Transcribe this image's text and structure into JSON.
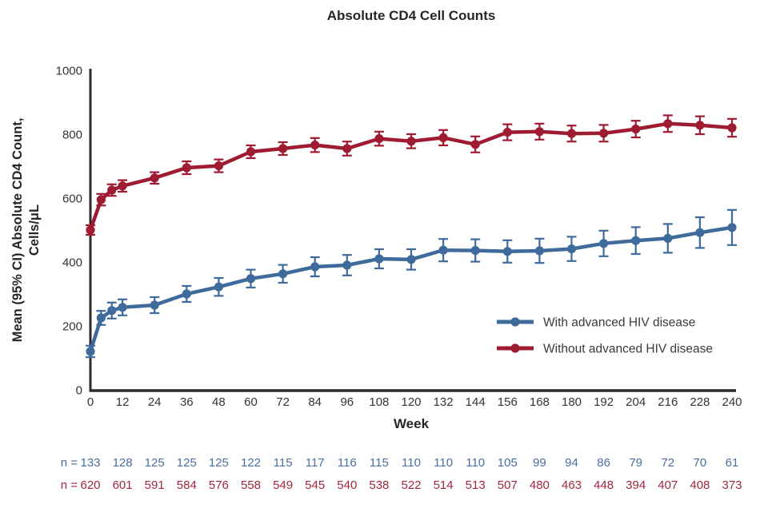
{
  "title": "Absolute CD4 Cell Counts",
  "colors": {
    "with_advanced_blue": "#3E6A9C",
    "without_advanced_red": "#9E1B32",
    "n_row_blue": "#4A6E9E",
    "n_row_red": "#A0283C",
    "axis": "#2B2B2B",
    "tick_label": "#333333",
    "legend_text": "#3A3A3A"
  },
  "chart_data": {
    "type": "line",
    "title": "Absolute CD4 Cell Counts",
    "xlabel": "Week",
    "ylabel": "Mean (95% CI) Absolute CD4 Count, Cells/μL",
    "ylabel_lines": [
      "Mean (95% CI) Absolute CD4 Count,",
      "Cells/μL"
    ],
    "xlim": [
      0,
      240
    ],
    "ylim": [
      0,
      1000
    ],
    "xticks": [
      0,
      12,
      24,
      36,
      48,
      60,
      72,
      84,
      96,
      108,
      120,
      132,
      144,
      156,
      168,
      180,
      192,
      204,
      216,
      228,
      240
    ],
    "yticks": [
      0,
      200,
      400,
      600,
      800,
      1000
    ],
    "grid": false,
    "error_bars": "95% CI",
    "legend_position": "inside lower right",
    "x": [
      0,
      4,
      8,
      12,
      24,
      36,
      48,
      60,
      72,
      84,
      96,
      108,
      120,
      132,
      144,
      156,
      168,
      180,
      192,
      204,
      216,
      228,
      240
    ],
    "series": [
      {
        "name": "With advanced HIV disease",
        "color": "#3E6A9C",
        "values": [
          120,
          225,
          248,
          258,
          265,
          300,
          322,
          348,
          363,
          385,
          390,
          410,
          408,
          437,
          436,
          433,
          435,
          441,
          458,
          467,
          474,
          492,
          508
        ],
        "ci_half_width": [
          18,
          22,
          25,
          25,
          25,
          25,
          28,
          28,
          28,
          30,
          32,
          30,
          32,
          35,
          35,
          35,
          38,
          38,
          40,
          42,
          45,
          48,
          55
        ]
      },
      {
        "name": "Without advanced HIV disease",
        "color": "#9E1B32",
        "values": [
          500,
          595,
          625,
          638,
          663,
          695,
          701,
          745,
          755,
          766,
          755,
          786,
          778,
          789,
          768,
          806,
          808,
          802,
          803,
          816,
          833,
          828,
          820
        ],
        "ci_half_width": [
          15,
          18,
          18,
          18,
          18,
          20,
          20,
          20,
          20,
          22,
          22,
          22,
          22,
          24,
          25,
          25,
          25,
          25,
          26,
          26,
          26,
          28,
          28
        ]
      }
    ]
  },
  "n_table": {
    "weeks": [
      0,
      12,
      24,
      36,
      48,
      60,
      72,
      84,
      96,
      108,
      120,
      132,
      144,
      156,
      168,
      180,
      192,
      204,
      216,
      228,
      240
    ],
    "rows": [
      {
        "label": "n =",
        "series": "With advanced HIV disease",
        "color": "#4A6E9E",
        "values": [
          133,
          128,
          125,
          125,
          125,
          122,
          115,
          117,
          116,
          115,
          110,
          110,
          110,
          105,
          99,
          94,
          86,
          79,
          72,
          70,
          61
        ]
      },
      {
        "label": "n =",
        "series": "Without advanced HIV disease",
        "color": "#A0283C",
        "values": [
          620,
          601,
          591,
          584,
          576,
          558,
          549,
          545,
          540,
          538,
          522,
          514,
          513,
          507,
          480,
          463,
          448,
          394,
          407,
          408,
          373
        ]
      }
    ]
  }
}
